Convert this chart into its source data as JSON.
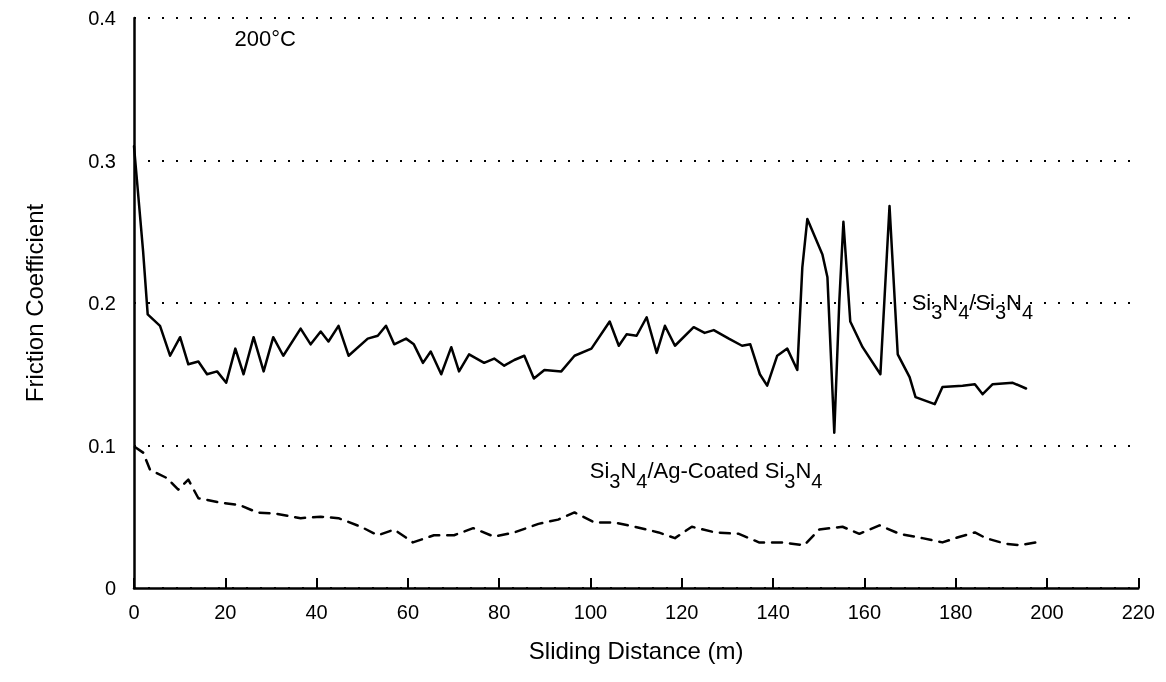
{
  "chart_data": {
    "type": "line",
    "xlabel": "Sliding Distance (m)",
    "ylabel": "Friction Coefficient",
    "annotations": [
      "200°C"
    ],
    "xlim": [
      0,
      220
    ],
    "xticks": [
      0,
      20,
      40,
      60,
      80,
      100,
      120,
      140,
      160,
      180,
      200,
      220
    ],
    "ylim": [
      0,
      0.4
    ],
    "yticks": [
      0,
      0.1,
      0.2,
      0.3,
      0.4
    ],
    "grid": "y",
    "legend": false,
    "marker": "none",
    "series": [
      {
        "name": "Si$_{3}$N$_{4}$/Si$_{3}$N$_{4}$",
        "color": "#000000",
        "line_style": "solid",
        "x": [
          0,
          2,
          3,
          5.7,
          7.9,
          10.1,
          11.9,
          14.1,
          16,
          18.2,
          20.2,
          22.2,
          24,
          26.2,
          28.4,
          30.5,
          32.7,
          36.5,
          38.7,
          40.9,
          42.6,
          44.8,
          47,
          51.2,
          53.4,
          55.2,
          57,
          59.6,
          61.3,
          63.3,
          65,
          67.3,
          69.5,
          71.2,
          73.4,
          76.7,
          78.9,
          81.1,
          83.3,
          85.5,
          87.6,
          89.9,
          93.6,
          96.5,
          100.2,
          104.2,
          106.2,
          107.9,
          110.1,
          112.3,
          114.5,
          116.3,
          118.5,
          122.6,
          125,
          127,
          130.3,
          133.2,
          135,
          137.1,
          138.7,
          140.9,
          143.1,
          145.3,
          146.4,
          147.5,
          150.8,
          151.9,
          153.4,
          154.5,
          155.4,
          156.9,
          159.6,
          163.5,
          165.5,
          167.3,
          169.9,
          171.2,
          175.4,
          177.1,
          181.5,
          184.2,
          185.9,
          188.1,
          192.5,
          195.4
        ],
        "values": [
          0.31,
          0.236,
          0.192,
          0.184,
          0.163,
          0.176,
          0.157,
          0.159,
          0.15,
          0.152,
          0.144,
          0.168,
          0.15,
          0.176,
          0.152,
          0.176,
          0.163,
          0.182,
          0.171,
          0.18,
          0.173,
          0.184,
          0.163,
          0.175,
          0.177,
          0.184,
          0.171,
          0.175,
          0.171,
          0.158,
          0.166,
          0.15,
          0.169,
          0.152,
          0.164,
          0.158,
          0.161,
          0.156,
          0.16,
          0.163,
          0.147,
          0.153,
          0.152,
          0.163,
          0.168,
          0.187,
          0.17,
          0.178,
          0.177,
          0.19,
          0.165,
          0.184,
          0.17,
          0.183,
          0.179,
          0.181,
          0.175,
          0.17,
          0.171,
          0.15,
          0.142,
          0.163,
          0.168,
          0.153,
          0.225,
          0.259,
          0.234,
          0.218,
          0.109,
          0.201,
          0.257,
          0.187,
          0.169,
          0.15,
          0.268,
          0.164,
          0.148,
          0.134,
          0.129,
          0.141,
          0.142,
          0.143,
          0.136,
          0.143,
          0.144,
          0.14
        ]
      },
      {
        "name": "Si$_{3}$N$_{4}$/Ag-Coated Si$_{3}$N$_{4}$",
        "color": "#000000",
        "line_style": "dashed",
        "x": [
          0.2,
          2,
          3.5,
          7.3,
          9.7,
          11.9,
          14.1,
          18.9,
          23.3,
          27,
          31.4,
          36.5,
          40.9,
          44.8,
          49.7,
          53.4,
          57,
          61.1,
          65.7,
          70.1,
          74.3,
          78.9,
          83.3,
          88.6,
          92.9,
          96.5,
          100.9,
          105.3,
          109.7,
          114.9,
          118.5,
          122.2,
          127.3,
          132.5,
          136.9,
          142,
          146.8,
          150.1,
          155.2,
          158.9,
          163.3,
          167.7,
          172.7,
          177.1,
          180.9,
          184.2,
          186.6,
          191,
          194.1,
          197.6
        ],
        "values": [
          0.099,
          0.095,
          0.083,
          0.077,
          0.069,
          0.076,
          0.063,
          0.06,
          0.058,
          0.053,
          0.052,
          0.049,
          0.05,
          0.049,
          0.043,
          0.037,
          0.041,
          0.032,
          0.037,
          0.037,
          0.042,
          0.036,
          0.039,
          0.045,
          0.048,
          0.053,
          0.046,
          0.046,
          0.043,
          0.039,
          0.035,
          0.043,
          0.039,
          0.038,
          0.032,
          0.032,
          0.03,
          0.041,
          0.043,
          0.038,
          0.044,
          0.038,
          0.035,
          0.032,
          0.036,
          0.039,
          0.035,
          0.031,
          0.03,
          0.032
        ]
      }
    ]
  }
}
